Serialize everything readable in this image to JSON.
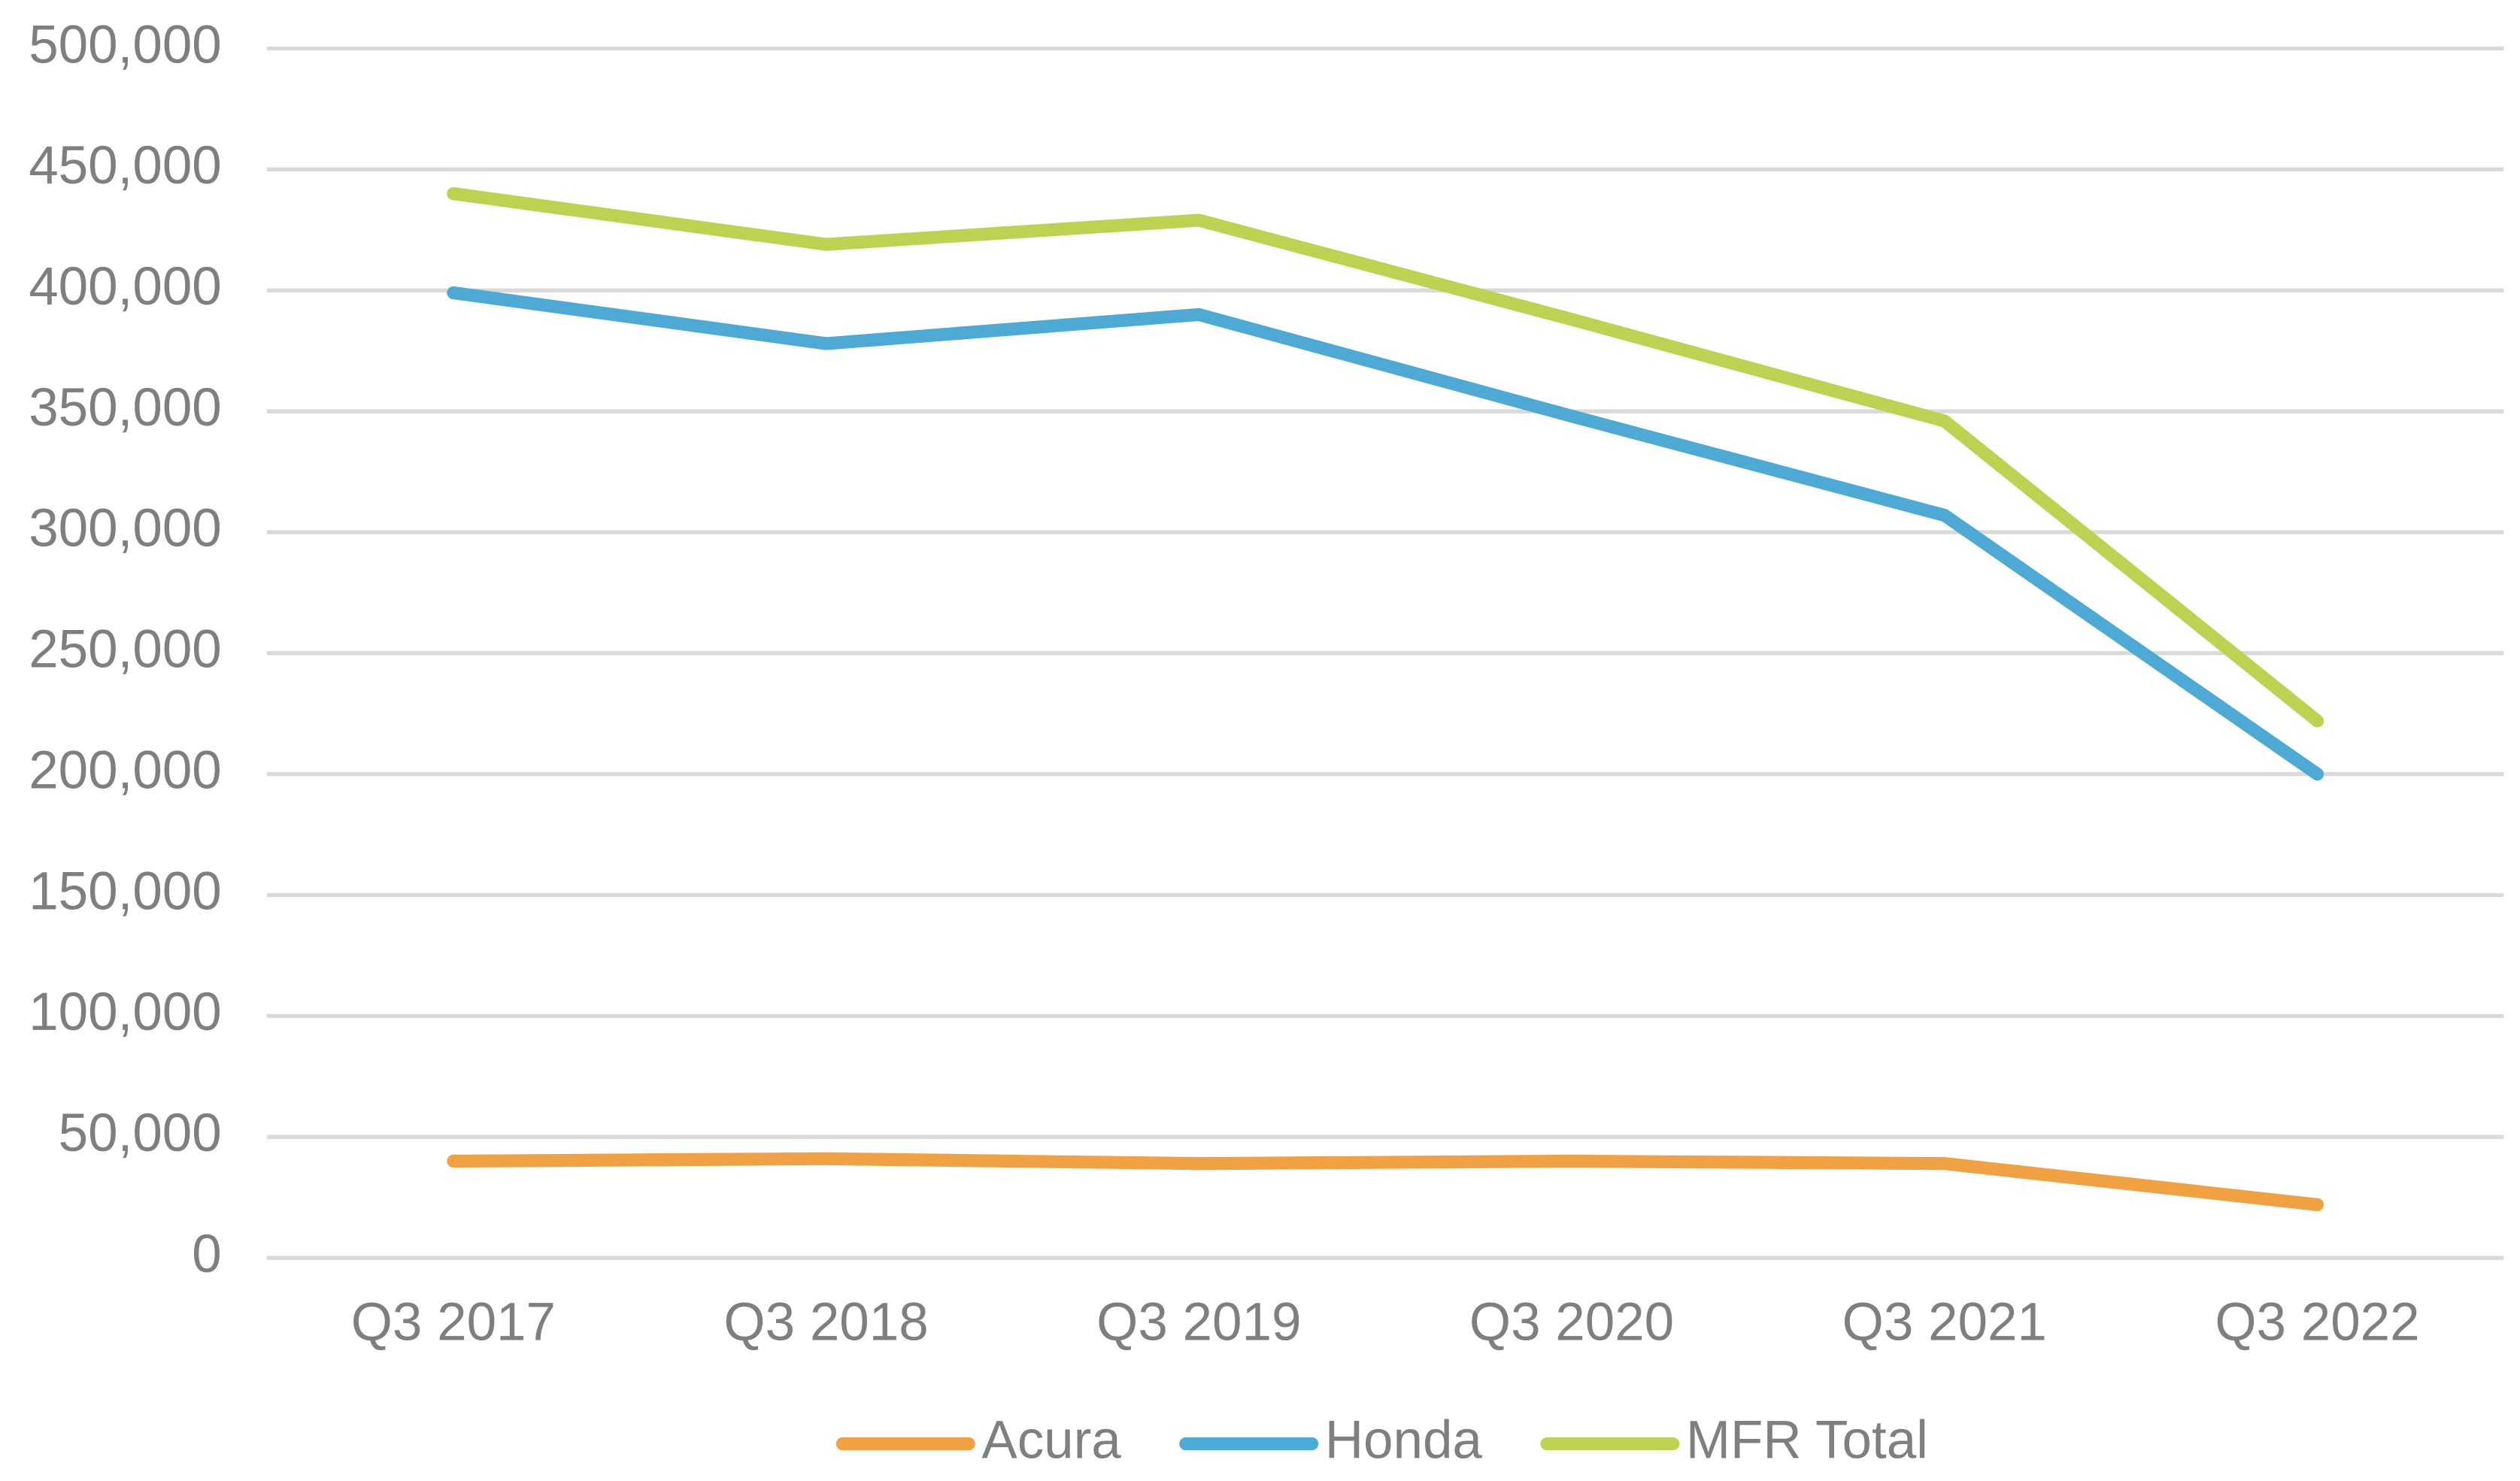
{
  "chart_data": {
    "type": "line",
    "categories": [
      "Q3 2017",
      "Q3 2018",
      "Q3 2019",
      "Q3 2020",
      "Q3 2021",
      "Q3 2022"
    ],
    "series": [
      {
        "name": "Acura",
        "color": "#f0a143",
        "values": [
          40000,
          41000,
          39000,
          40000,
          39000,
          22000
        ]
      },
      {
        "name": "Honda",
        "color": "#4eaad4",
        "values": [
          399000,
          378000,
          390000,
          348000,
          307000,
          200000
        ]
      },
      {
        "name": "MFR Total",
        "color": "#bdd252",
        "values": [
          440000,
          419000,
          429000,
          388000,
          346000,
          222000
        ]
      }
    ],
    "ylim": [
      0,
      500000
    ],
    "yticks": [
      0,
      {
        "value": 50000,
        "label": "50,000"
      },
      {
        "value": 100000,
        "label": "100,000"
      },
      {
        "value": 150000,
        "label": "150,000"
      },
      {
        "value": 200000,
        "label": "200,000"
      },
      {
        "value": 250000,
        "label": "250,000"
      },
      {
        "value": 300000,
        "label": "300,000"
      },
      {
        "value": 350000,
        "label": "350,000"
      },
      {
        "value": 400000,
        "label": "400,000"
      },
      {
        "value": 450000,
        "label": "450,000"
      },
      {
        "value": 500000,
        "label": "500,000"
      }
    ],
    "grid": true,
    "legend": "bottom"
  }
}
